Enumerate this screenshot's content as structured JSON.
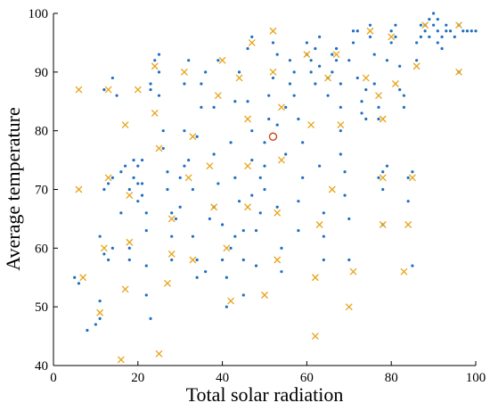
{
  "chart_data": {
    "type": "scatter",
    "title": "",
    "xlabel": "Total solar radiation",
    "ylabel": "Average temperature",
    "xlim": [
      0,
      100
    ],
    "ylim": [
      40,
      100
    ],
    "xticks": [
      0,
      20,
      40,
      60,
      80,
      100
    ],
    "yticks": [
      40,
      50,
      60,
      70,
      80,
      90,
      100
    ],
    "grid": false,
    "legend": "none",
    "colors": {
      "dots": "#1f6fc0",
      "crosses": "#e8a317",
      "circle": "#d0451b",
      "axis": "#000000"
    },
    "series": [
      {
        "marker": "dot",
        "points": [
          [
            5,
            55
          ],
          [
            6,
            54
          ],
          [
            8,
            46
          ],
          [
            10,
            47
          ],
          [
            11,
            48
          ],
          [
            11,
            62
          ],
          [
            11,
            51
          ],
          [
            12,
            59
          ],
          [
            13,
            58
          ],
          [
            14,
            60
          ],
          [
            14,
            72
          ],
          [
            13,
            71
          ],
          [
            12,
            70
          ],
          [
            12,
            87
          ],
          [
            14,
            89
          ],
          [
            15,
            86
          ],
          [
            16,
            66
          ],
          [
            16,
            73
          ],
          [
            17,
            74
          ],
          [
            18,
            58
          ],
          [
            18,
            60
          ],
          [
            18,
            70
          ],
          [
            19,
            72
          ],
          [
            19,
            75
          ],
          [
            20,
            68
          ],
          [
            20,
            71
          ],
          [
            20,
            74
          ],
          [
            21,
            75
          ],
          [
            21,
            71
          ],
          [
            21,
            69
          ],
          [
            22,
            66
          ],
          [
            22,
            63
          ],
          [
            22,
            57
          ],
          [
            22,
            52
          ],
          [
            23,
            48
          ],
          [
            23,
            87
          ],
          [
            23,
            88
          ],
          [
            24,
            92
          ],
          [
            25,
            93
          ],
          [
            25,
            90
          ],
          [
            25,
            86
          ],
          [
            26,
            77
          ],
          [
            26,
            80
          ],
          [
            27,
            73
          ],
          [
            27,
            70
          ],
          [
            28,
            58
          ],
          [
            28,
            62
          ],
          [
            28,
            66
          ],
          [
            29,
            65
          ],
          [
            30,
            67
          ],
          [
            30,
            72
          ],
          [
            31,
            74
          ],
          [
            31,
            80
          ],
          [
            31,
            88
          ],
          [
            32,
            92
          ],
          [
            32,
            75
          ],
          [
            33,
            70
          ],
          [
            33,
            62
          ],
          [
            34,
            58
          ],
          [
            34,
            55
          ],
          [
            34,
            79
          ],
          [
            35,
            84
          ],
          [
            35,
            88
          ],
          [
            36,
            90
          ],
          [
            36,
            56
          ],
          [
            37,
            65
          ],
          [
            38,
            67
          ],
          [
            38,
            76
          ],
          [
            38,
            84
          ],
          [
            39,
            92
          ],
          [
            39,
            71
          ],
          [
            40,
            64
          ],
          [
            40,
            58
          ],
          [
            41,
            55
          ],
          [
            41,
            50
          ],
          [
            42,
            60
          ],
          [
            42,
            78
          ],
          [
            43,
            62
          ],
          [
            43,
            72
          ],
          [
            43,
            85
          ],
          [
            44,
            90
          ],
          [
            44,
            68
          ],
          [
            45,
            58
          ],
          [
            45,
            52
          ],
          [
            45,
            63
          ],
          [
            46,
            85
          ],
          [
            46,
            94
          ],
          [
            47,
            96
          ],
          [
            47,
            80
          ],
          [
            47,
            75
          ],
          [
            47,
            69
          ],
          [
            48,
            57
          ],
          [
            48,
            63
          ],
          [
            49,
            66
          ],
          [
            49,
            72
          ],
          [
            50,
            70
          ],
          [
            50,
            74
          ],
          [
            50,
            78
          ],
          [
            51,
            82
          ],
          [
            51,
            86
          ],
          [
            52,
            89
          ],
          [
            52,
            95
          ],
          [
            53,
            93
          ],
          [
            53,
            81
          ],
          [
            53,
            67
          ],
          [
            54,
            60
          ],
          [
            54,
            56
          ],
          [
            55,
            76
          ],
          [
            55,
            84
          ],
          [
            56,
            88
          ],
          [
            56,
            92
          ],
          [
            57,
            90
          ],
          [
            57,
            86
          ],
          [
            58,
            82
          ],
          [
            58,
            68
          ],
          [
            58,
            63
          ],
          [
            59,
            72
          ],
          [
            59,
            78
          ],
          [
            60,
            93
          ],
          [
            60,
            95
          ],
          [
            61,
            92
          ],
          [
            61,
            90
          ],
          [
            62,
            88
          ],
          [
            62,
            94
          ],
          [
            63,
            96
          ],
          [
            63,
            91
          ],
          [
            63,
            74
          ],
          [
            64,
            58
          ],
          [
            64,
            62
          ],
          [
            64,
            66
          ],
          [
            65,
            86
          ],
          [
            65,
            89
          ],
          [
            66,
            90
          ],
          [
            66,
            93
          ],
          [
            67,
            94
          ],
          [
            67,
            92
          ],
          [
            68,
            88
          ],
          [
            68,
            84
          ],
          [
            68,
            80
          ],
          [
            68,
            76
          ],
          [
            69,
            73
          ],
          [
            69,
            69
          ],
          [
            70,
            65
          ],
          [
            70,
            58
          ],
          [
            70,
            92
          ],
          [
            71,
            95
          ],
          [
            71,
            97
          ],
          [
            72,
            97
          ],
          [
            72,
            89
          ],
          [
            73,
            85
          ],
          [
            73,
            83
          ],
          [
            74,
            82
          ],
          [
            74,
            87
          ],
          [
            75,
            98
          ],
          [
            75,
            96
          ],
          [
            76,
            93
          ],
          [
            76,
            88
          ],
          [
            77,
            84
          ],
          [
            77,
            82
          ],
          [
            77,
            72
          ],
          [
            78,
            64
          ],
          [
            78,
            70
          ],
          [
            78,
            73
          ],
          [
            79,
            74
          ],
          [
            79,
            92
          ],
          [
            80,
            95
          ],
          [
            80,
            97
          ],
          [
            81,
            98
          ],
          [
            81,
            96
          ],
          [
            82,
            91
          ],
          [
            82,
            87
          ],
          [
            83,
            86
          ],
          [
            83,
            84
          ],
          [
            84,
            72
          ],
          [
            84,
            68
          ],
          [
            85,
            57
          ],
          [
            85,
            73
          ],
          [
            86,
            92
          ],
          [
            86,
            95
          ],
          [
            87,
            96
          ],
          [
            87,
            98
          ],
          [
            88,
            98
          ],
          [
            88,
            97
          ],
          [
            89,
            99
          ],
          [
            89,
            96
          ],
          [
            90,
            100
          ],
          [
            90,
            98
          ],
          [
            91,
            97
          ],
          [
            91,
            99
          ],
          [
            91,
            95
          ],
          [
            92,
            96
          ],
          [
            92,
            94
          ],
          [
            93,
            98
          ],
          [
            93,
            97
          ],
          [
            94,
            97
          ],
          [
            95,
            96
          ],
          [
            96,
            98
          ],
          [
            96,
            90
          ],
          [
            97,
            97
          ],
          [
            98,
            97
          ],
          [
            99,
            97
          ],
          [
            100,
            97
          ]
        ]
      },
      {
        "marker": "cross",
        "points": [
          [
            6,
            70
          ],
          [
            6,
            87
          ],
          [
            7,
            55
          ],
          [
            11,
            49
          ],
          [
            12,
            60
          ],
          [
            13,
            87
          ],
          [
            13,
            72
          ],
          [
            17,
            81
          ],
          [
            17,
            53
          ],
          [
            18,
            61
          ],
          [
            18,
            69
          ],
          [
            20,
            87
          ],
          [
            16,
            41
          ],
          [
            24,
            91
          ],
          [
            24,
            83
          ],
          [
            25,
            77
          ],
          [
            25,
            42
          ],
          [
            27,
            54
          ],
          [
            28,
            59
          ],
          [
            28,
            65
          ],
          [
            31,
            90
          ],
          [
            32,
            72
          ],
          [
            33,
            58
          ],
          [
            33,
            79
          ],
          [
            37,
            74
          ],
          [
            38,
            67
          ],
          [
            39,
            86
          ],
          [
            40,
            92
          ],
          [
            41,
            60
          ],
          [
            42,
            51
          ],
          [
            44,
            89
          ],
          [
            46,
            82
          ],
          [
            46,
            74
          ],
          [
            46,
            67
          ],
          [
            47,
            95
          ],
          [
            50,
            52
          ],
          [
            52,
            97
          ],
          [
            52,
            90
          ],
          [
            53,
            66
          ],
          [
            53,
            58
          ],
          [
            54,
            84
          ],
          [
            54,
            75
          ],
          [
            60,
            93
          ],
          [
            61,
            81
          ],
          [
            62,
            55
          ],
          [
            62,
            45
          ],
          [
            63,
            64
          ],
          [
            65,
            89
          ],
          [
            66,
            70
          ],
          [
            67,
            93
          ],
          [
            68,
            81
          ],
          [
            70,
            50
          ],
          [
            71,
            56
          ],
          [
            74,
            89
          ],
          [
            75,
            97
          ],
          [
            77,
            86
          ],
          [
            78,
            64
          ],
          [
            78,
            82
          ],
          [
            78,
            72
          ],
          [
            80,
            96
          ],
          [
            81,
            88
          ],
          [
            83,
            56
          ],
          [
            84,
            64
          ],
          [
            85,
            72
          ],
          [
            86,
            91
          ],
          [
            88,
            98
          ],
          [
            96,
            98
          ],
          [
            96,
            90
          ]
        ]
      },
      {
        "marker": "circle",
        "points": [
          [
            52,
            79
          ]
        ]
      }
    ]
  }
}
